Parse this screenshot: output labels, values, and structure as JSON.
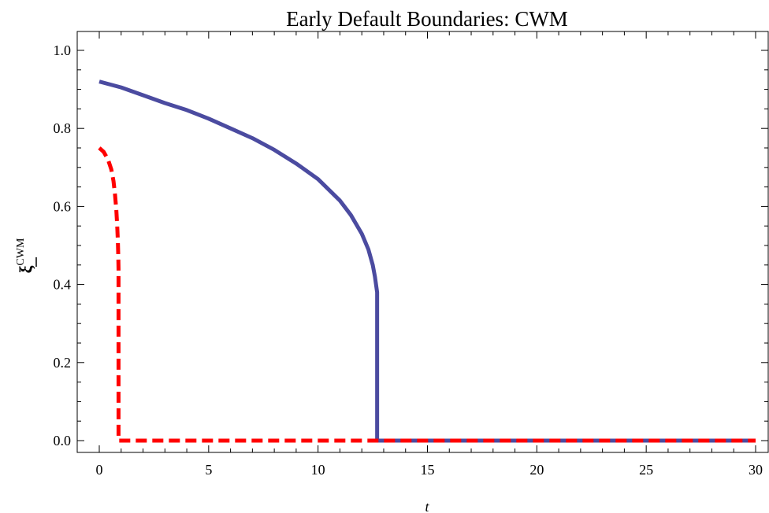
{
  "chart_data": {
    "type": "line",
    "title": "Early Default Boundaries: CWM",
    "xlabel": "t",
    "ylabel": "ξ",
    "ylabel_superscript": "CWM",
    "xlim": [
      -1,
      30.5
    ],
    "ylim": [
      -0.03,
      1.05
    ],
    "xticks": [
      0,
      5,
      10,
      15,
      20,
      25,
      30
    ],
    "xtick_labels": [
      "0",
      "5",
      "10",
      "15",
      "20",
      "25",
      "30"
    ],
    "yticks": [
      0.0,
      0.2,
      0.4,
      0.6,
      0.8,
      1.0
    ],
    "ytick_labels": [
      "0.0",
      "0.2",
      "0.4",
      "0.6",
      "0.8",
      "1.0"
    ],
    "grid": false,
    "series": [
      {
        "color": "#4b4ba0",
        "style": "solid",
        "x": [
          0,
          1,
          2,
          3,
          4,
          5,
          6,
          7,
          8,
          9,
          10,
          11,
          11.5,
          12,
          12.3,
          12.5,
          12.6,
          12.65,
          12.7,
          12.7,
          13,
          15,
          20,
          25,
          30
        ],
        "y": [
          0.92,
          0.905,
          0.885,
          0.865,
          0.847,
          0.825,
          0.8,
          0.775,
          0.745,
          0.71,
          0.67,
          0.615,
          0.578,
          0.53,
          0.49,
          0.45,
          0.42,
          0.4,
          0.38,
          0.0,
          0.0,
          0.0,
          0.0,
          0.0,
          0.0
        ]
      },
      {
        "color": "#ff0000",
        "style": "dashed",
        "x": [
          0,
          0.2,
          0.4,
          0.55,
          0.65,
          0.72,
          0.78,
          0.82,
          0.85,
          0.87,
          0.88,
          0.88,
          1,
          5,
          10,
          15,
          20,
          25,
          30
        ],
        "y": [
          0.75,
          0.74,
          0.72,
          0.695,
          0.665,
          0.63,
          0.59,
          0.55,
          0.51,
          0.47,
          0.44,
          0.0,
          0.0,
          0.0,
          0.0,
          0.0,
          0.0,
          0.0,
          0.0
        ]
      }
    ]
  }
}
